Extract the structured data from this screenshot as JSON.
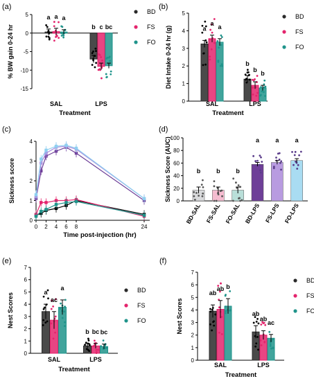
{
  "chart_data": [
    {
      "panel": "(a)",
      "type": "bar",
      "ylabel": "% BW gain 0-24 hr",
      "xlabel": "Treatment",
      "ylim": [
        -15,
        5
      ],
      "yticks": [
        5,
        0,
        -5,
        -10,
        -15
      ],
      "categories": [
        "SAL",
        "LPS"
      ],
      "legend": [
        "BD",
        "FS",
        "FO"
      ],
      "series": [
        {
          "name": "BD",
          "values": [
            0.3,
            -7.0
          ],
          "errors": [
            0.8,
            1.0
          ],
          "letters": [
            "a",
            "b"
          ]
        },
        {
          "name": "FS",
          "values": [
            0.4,
            -9.0
          ],
          "errors": [
            0.9,
            0.9
          ],
          "letters": [
            "a",
            "c"
          ]
        },
        {
          "name": "FO",
          "values": [
            0.3,
            -8.8
          ],
          "errors": [
            0.6,
            0.7
          ],
          "letters": [
            "a",
            "bc"
          ]
        }
      ]
    },
    {
      "panel": "(b)",
      "type": "bar",
      "ylabel": "Diet Intake 0-24 hr (g)",
      "xlabel": "Treatment",
      "ylim": [
        0,
        5
      ],
      "yticks": [
        0,
        1,
        2,
        3,
        4,
        5
      ],
      "categories": [
        "SAL",
        "LPS"
      ],
      "legend": [
        "BD",
        "FS",
        "FO"
      ],
      "series": [
        {
          "name": "BD",
          "values": [
            3.25,
            1.25
          ],
          "errors": [
            0.2,
            0.2
          ],
          "letters": [
            "a",
            "b"
          ]
        },
        {
          "name": "FS",
          "values": [
            3.55,
            0.9
          ],
          "errors": [
            0.2,
            0.2
          ],
          "letters": [
            "a",
            "b"
          ]
        },
        {
          "name": "FO",
          "values": [
            3.35,
            0.75
          ],
          "errors": [
            0.2,
            0.15
          ],
          "letters": [
            "a",
            "b"
          ]
        }
      ]
    },
    {
      "panel": "(c)",
      "type": "line",
      "ylabel": "Sickness score",
      "xlabel": "Time post-injection (hr)",
      "ylim": [
        0,
        4
      ],
      "yticks": [
        0,
        1,
        2,
        3,
        4
      ],
      "xticks": [
        0,
        2,
        4,
        6,
        8,
        24
      ],
      "x": [
        0,
        1,
        2,
        4,
        6,
        8,
        24
      ],
      "series": [
        {
          "name": "BD-SAL",
          "values": [
            0.25,
            0.35,
            0.5,
            0.6,
            0.75,
            1.0,
            0.3
          ]
        },
        {
          "name": "FS-SAL",
          "values": [
            0.3,
            0.9,
            0.9,
            1.0,
            1.0,
            1.05,
            0.2
          ]
        },
        {
          "name": "FO-SAL",
          "values": [
            0.2,
            0.45,
            0.55,
            0.8,
            0.9,
            0.95,
            0.25
          ]
        },
        {
          "name": "BD-LPS",
          "values": [
            1.1,
            2.5,
            3.25,
            3.5,
            3.7,
            3.4,
            1.0
          ]
        },
        {
          "name": "FS-LPS",
          "values": [
            1.2,
            2.9,
            3.4,
            3.7,
            3.75,
            3.6,
            1.1
          ]
        },
        {
          "name": "FO-LPS",
          "values": [
            1.3,
            3.1,
            3.55,
            3.75,
            3.8,
            3.65,
            1.1
          ]
        }
      ]
    },
    {
      "panel": "(d)",
      "type": "bar",
      "ylabel": "Sickness Score (AUC)",
      "ylim": [
        0,
        100
      ],
      "yticks": [
        0,
        20,
        40,
        60,
        80,
        100
      ],
      "categories": [
        "BD-SAL",
        "FS-SAL",
        "FO-SAL",
        "BD-LPS",
        "FS-LPS",
        "FO-LPS"
      ],
      "values": [
        17,
        17,
        17,
        58,
        61,
        64
      ],
      "errors": [
        5,
        5,
        5,
        3,
        3,
        3
      ],
      "letters": [
        "b",
        "b",
        "b",
        "a",
        "a",
        "a"
      ]
    },
    {
      "panel": "(e)",
      "type": "bar",
      "ylabel": "Nest Scores",
      "xlabel": "Treatment",
      "ylim": [
        0,
        7
      ],
      "yticks": [
        0,
        1,
        2,
        3,
        4,
        5,
        6,
        7
      ],
      "categories": [
        "SAL",
        "LPS"
      ],
      "legend": [
        "BD",
        "FS",
        "FO"
      ],
      "series": [
        {
          "name": "BD",
          "values": [
            3.4,
            0.6
          ],
          "errors": [
            0.6,
            0.2
          ],
          "letters": [
            "a",
            "b"
          ]
        },
        {
          "name": "FS",
          "values": [
            2.7,
            0.6
          ],
          "errors": [
            0.7,
            0.2
          ],
          "letters": [
            "ac",
            "bc"
          ]
        },
        {
          "name": "FO",
          "values": [
            3.75,
            0.55
          ],
          "errors": [
            0.6,
            0.2
          ],
          "letters": [
            "a",
            "bc"
          ]
        }
      ]
    },
    {
      "panel": "(f)",
      "type": "bar",
      "ylabel": "Nest Scores",
      "xlabel": "Treatment",
      "ylim": [
        0,
        7
      ],
      "yticks": [
        0,
        1,
        2,
        3,
        4,
        5,
        6,
        7
      ],
      "categories": [
        "SAL",
        "LPS"
      ],
      "legend": [
        "BD",
        "FS",
        "FO"
      ],
      "series": [
        {
          "name": "BD",
          "values": [
            3.9,
            2.25
          ],
          "errors": [
            0.5,
            0.5
          ],
          "letters": [
            "ab",
            "ab"
          ]
        },
        {
          "name": "FS",
          "values": [
            4.05,
            2.0
          ],
          "errors": [
            0.7,
            0.35
          ],
          "letters": [
            "ab",
            "ab"
          ]
        },
        {
          "name": "FO",
          "values": [
            4.3,
            1.75
          ],
          "errors": [
            0.6,
            0.3
          ],
          "letters": [
            "b",
            "ac"
          ]
        }
      ]
    }
  ],
  "colors": {
    "BD": "#2a2a2a",
    "FS": "#e4256d",
    "FO": "#20948b",
    "BD-SAL": "#d9dadc",
    "FS-SAL": "#f5bcd0",
    "FO-SAL": "#b9dfd9",
    "BD-LPS": "#6e3f98",
    "FS-LPS": "#b89be0",
    "FO-LPS": "#a9dcf2",
    "line_BD-SAL": "#000000",
    "line_FS-SAL": "#e4256d",
    "line_FO-SAL": "#20948b",
    "line_BD-LPS": "#6e3f98",
    "line_FS-LPS": "#a98bdf",
    "line_FO-LPS": "#8fd0f0"
  }
}
